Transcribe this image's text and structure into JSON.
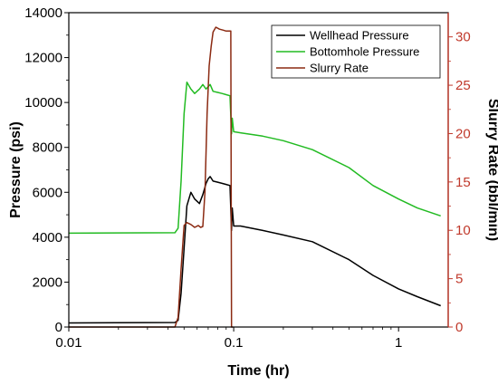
{
  "chart_data": {
    "type": "line",
    "xlabel": "Time (hr)",
    "ylabel_left": "Pressure (psi)",
    "ylabel_right": "Slurry Rate (bbl/min)",
    "x_scale": "log",
    "xlim": [
      0.01,
      2
    ],
    "ylim_left": [
      0,
      14000
    ],
    "ylim_right": [
      0,
      32.5
    ],
    "x_ticks": [
      0.01,
      0.1,
      1
    ],
    "x_tick_labels": [
      "0.01",
      "0.1",
      "1"
    ],
    "y_left_ticks": [
      0,
      2000,
      4000,
      6000,
      8000,
      10000,
      12000,
      14000
    ],
    "y_left_tick_labels": [
      "0",
      "2000",
      "4000",
      "6000",
      "8000",
      "10000",
      "12000",
      "14000"
    ],
    "y_right_ticks": [
      0,
      5,
      10,
      15,
      20,
      25,
      30
    ],
    "y_right_tick_labels": [
      "0",
      "5",
      "10",
      "15",
      "20",
      "25",
      "30"
    ],
    "grid": false,
    "legend_position": "top-right",
    "series": [
      {
        "name": "Wellhead Pressure",
        "axis": "left",
        "color": "#000000",
        "x": [
          0.01,
          0.044,
          0.046,
          0.048,
          0.05,
          0.052,
          0.055,
          0.058,
          0.062,
          0.065,
          0.068,
          0.07,
          0.072,
          0.075,
          0.08,
          0.085,
          0.09,
          0.095,
          0.097,
          0.098,
          0.1,
          0.11,
          0.15,
          0.2,
          0.3,
          0.5,
          0.7,
          1.0,
          1.3,
          1.8
        ],
        "y": [
          180,
          200,
          300,
          1500,
          3500,
          5400,
          6000,
          5700,
          5500,
          5900,
          6400,
          6600,
          6700,
          6500,
          6450,
          6400,
          6350,
          6300,
          4300,
          5300,
          4500,
          4500,
          4300,
          4100,
          3800,
          3000,
          2300,
          1700,
          1350,
          950
        ]
      },
      {
        "name": "Bottomhole Pressure",
        "axis": "left",
        "color": "#22bb22",
        "x": [
          0.01,
          0.044,
          0.046,
          0.048,
          0.05,
          0.052,
          0.055,
          0.058,
          0.062,
          0.065,
          0.068,
          0.07,
          0.072,
          0.075,
          0.08,
          0.085,
          0.09,
          0.095,
          0.097,
          0.098,
          0.1,
          0.11,
          0.15,
          0.2,
          0.3,
          0.5,
          0.7,
          1.0,
          1.3,
          1.8
        ],
        "y": [
          4180,
          4200,
          4400,
          6500,
          9500,
          10900,
          10600,
          10400,
          10600,
          10800,
          10600,
          10700,
          10800,
          10500,
          10450,
          10400,
          10350,
          10300,
          8600,
          9300,
          8700,
          8650,
          8500,
          8300,
          7900,
          7100,
          6300,
          5700,
          5300,
          4950
        ]
      },
      {
        "name": "Slurry Rate",
        "axis": "right",
        "color": "#8b2a12",
        "x": [
          0.01,
          0.044,
          0.046,
          0.048,
          0.05,
          0.052,
          0.055,
          0.058,
          0.061,
          0.063,
          0.065,
          0.067,
          0.069,
          0.071,
          0.073,
          0.075,
          0.078,
          0.082,
          0.086,
          0.09,
          0.094,
          0.096,
          0.097,
          0.098,
          0.099
        ],
        "y": [
          0,
          0,
          1,
          6,
          10.5,
          10.8,
          10.6,
          10.3,
          10.5,
          10.3,
          10.4,
          14,
          22,
          27,
          29,
          30.5,
          31,
          30.8,
          30.7,
          30.6,
          30.6,
          30.6,
          0,
          0,
          0
        ]
      }
    ]
  }
}
